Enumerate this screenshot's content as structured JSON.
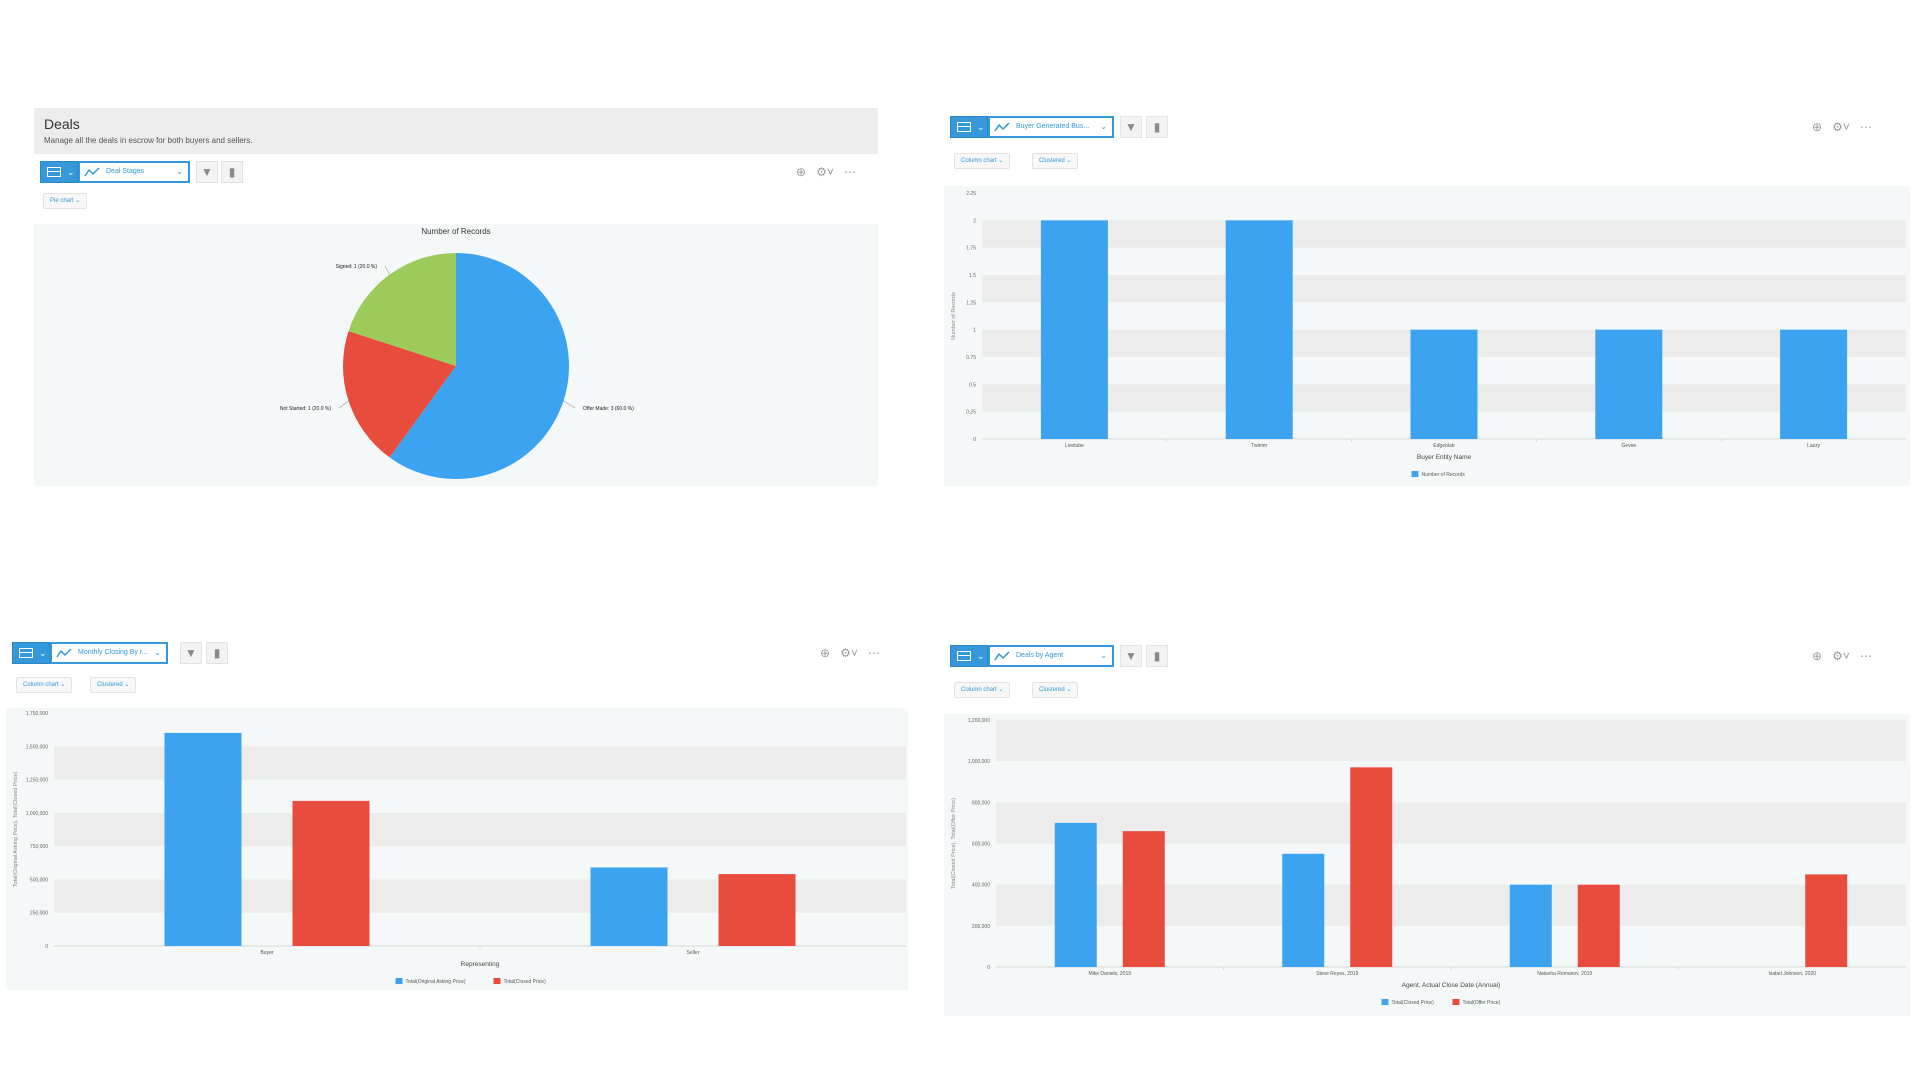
{
  "deals_header": {
    "title": "Deals",
    "description": "Manage all the deals in escrow for both buyers and sellers."
  },
  "panels": [
    {
      "chart_selector": "Deal Stages",
      "pills": [
        "Pie chart"
      ]
    },
    {
      "chart_selector": "Buyer Generated Bus...",
      "pills": [
        "Column chart",
        "Clustered"
      ]
    },
    {
      "chart_selector": "Monthly Closing By r...",
      "pills": [
        "Column chart",
        "Clustered"
      ]
    },
    {
      "chart_selector": "Deals by Agent",
      "pills": [
        "Column chart",
        "Clustered"
      ]
    }
  ],
  "icons": {
    "view": "table-view-icon",
    "chart_type": "line-chart-icon",
    "filter": "funnel-icon",
    "graph": "bar-graph-icon",
    "add": "plus-circle-icon",
    "settings": "gear-icon",
    "more": "ellipsis-icon"
  },
  "colors": {
    "blue": "#3ba3f0",
    "red": "#e74c3c",
    "green": "#9ccb5a",
    "accent": "#3498db"
  },
  "chart_data": [
    {
      "type": "pie",
      "title": "Number of Records",
      "slices": [
        {
          "label": "Offer Made: 3 (60.0 %)",
          "value": 3,
          "color": "#3ba3f0"
        },
        {
          "label": "Not Started: 1 (20.0 %)",
          "value": 1,
          "color": "#e74c3c"
        },
        {
          "label": "Signed: 1 (20.0 %)",
          "value": 1,
          "color": "#9ccb5a"
        }
      ]
    },
    {
      "type": "bar",
      "categories": [
        "Livetube",
        "Twimm",
        "Edgeblab",
        "Gevee",
        "Lazzy"
      ],
      "series": [
        {
          "name": "Number of Records",
          "values": [
            2,
            2,
            1,
            1,
            1
          ],
          "color": "#3ba3f0"
        }
      ],
      "yticks": [
        "0",
        "0.25",
        "0.5",
        "0.75",
        "1",
        "1.25",
        "1.5",
        "1.75",
        "2",
        "2.25"
      ],
      "ylim": [
        0,
        2.25
      ],
      "xlabel": "Buyer Entity Name",
      "ylabel": "Number of Records"
    },
    {
      "type": "bar",
      "categories": [
        "Buyer",
        "Seller"
      ],
      "series": [
        {
          "name": "Total(Original Asking Price)",
          "values": [
            1600000,
            590000
          ],
          "color": "#3ba3f0"
        },
        {
          "name": "Total(Closed Price)",
          "values": [
            1090000,
            540000
          ],
          "color": "#e74c3c"
        }
      ],
      "yticks": [
        "0",
        "250,000",
        "500,000",
        "750,000",
        "1,000,000",
        "1,250,000",
        "1,500,000",
        "1,750,000"
      ],
      "ylim": [
        0,
        1750000
      ],
      "xlabel": "Representing",
      "ylabel": "Total(Original Asking Price), Total(Closed Price)"
    },
    {
      "type": "bar",
      "categories": [
        "Mike Daniels, 2019",
        "Steve Reyes, 2019",
        "Natasha Romanov, 2019",
        "Isabel Johnson, 2020"
      ],
      "series": [
        {
          "name": "Total(Closed Price)",
          "values": [
            700000,
            550000,
            400000,
            null
          ],
          "color": "#3ba3f0"
        },
        {
          "name": "Total(Offer Price)",
          "values": [
            660000,
            970000,
            400000,
            450000
          ],
          "color": "#e74c3c"
        }
      ],
      "yticks": [
        "0",
        "200,000",
        "400,000",
        "600,000",
        "800,000",
        "1,000,000",
        "1,200,000"
      ],
      "ylim": [
        0,
        1200000
      ],
      "xlabel": "Agent, Actual Close Date (Annual)",
      "ylabel": "Total(Closed Price), Total(Offer Price)"
    }
  ]
}
